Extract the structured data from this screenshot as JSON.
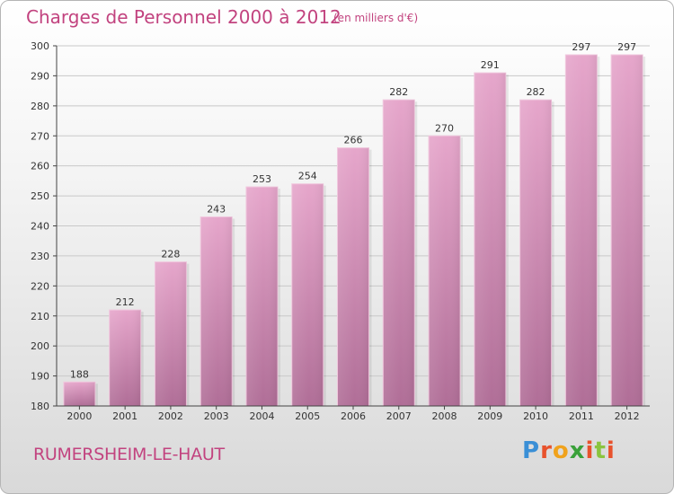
{
  "chart_data": {
    "type": "bar",
    "title": "Charges de Personnel 2000 à 2012",
    "subtitle": "(en milliers d'€)",
    "categories": [
      "2000",
      "2001",
      "2002",
      "2003",
      "2004",
      "2005",
      "2006",
      "2007",
      "2008",
      "2009",
      "2010",
      "2011",
      "2012"
    ],
    "values": [
      188,
      212,
      228,
      243,
      253,
      254,
      266,
      282,
      270,
      291,
      282,
      297,
      297
    ],
    "ylim": [
      180,
      300
    ],
    "yticks": [
      180,
      190,
      200,
      210,
      220,
      230,
      240,
      250,
      260,
      270,
      280,
      290,
      300
    ],
    "grid": true,
    "bar_color": "#d98cb5",
    "xlabel": "",
    "ylabel": ""
  },
  "location": "RUMERSHEIM-LE-HAUT",
  "logo": {
    "letters": [
      "P",
      "r",
      "o",
      "x",
      "i",
      "t",
      "i"
    ],
    "colors": [
      "#3a8fd6",
      "#e8522c",
      "#f0a21c",
      "#3aa13a",
      "#e8522c",
      "#8ac43f",
      "#e8522c"
    ]
  },
  "colors": {
    "accent": "#c2437f",
    "grid": "#c8c8c8",
    "axis": "#444444"
  }
}
